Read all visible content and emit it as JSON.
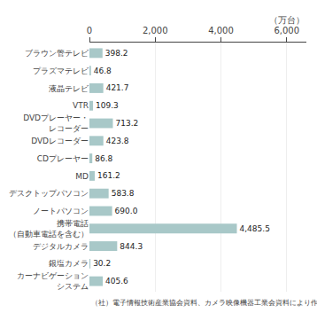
{
  "chart_data": {
    "type": "bar",
    "orientation": "horizontal",
    "categories": [
      "カーナビゲーション\nシステム",
      "銀塩カメラ",
      "デジタルカメラ",
      "携帯電話\n（自動車電話を含む）",
      "ノートパソコン",
      "デスクトップパソコン",
      "MD",
      "CDプレーヤー",
      "DVDレコーダー",
      "DVDプレーヤー・\nレコーダー",
      "VTR",
      "液晶テレビ",
      "プラズマテレビ",
      "ブラウン管テレビ"
    ],
    "values": [
      405.6,
      30.2,
      844.3,
      4485.5,
      690.0,
      583.8,
      161.2,
      86.8,
      423.8,
      713.2,
      109.3,
      421.7,
      46.8,
      398.2
    ],
    "value_labels": [
      "405.6",
      "30.2",
      "844.3",
      "4,485.5",
      "690.0",
      "583.8",
      "161.2",
      "86.8",
      "423.8",
      "713.2",
      "109.3",
      "421.7",
      "46.8",
      "398.2"
    ],
    "data_labels": true,
    "color": "#a8c8c8",
    "xlim": [
      0,
      6600
    ],
    "xticks": [
      0,
      {
        "value": 2000,
        "label": "2,000"
      },
      {
        "value": 4000,
        "label": "4,000"
      },
      {
        "value": 6000,
        "label": "6,000"
      }
    ],
    "xlabel": "（万台）",
    "annotations": [
      "（社）電子情報技術産業協会資料、カメラ映像機器工業会資料により作成"
    ],
    "grid": true
  }
}
